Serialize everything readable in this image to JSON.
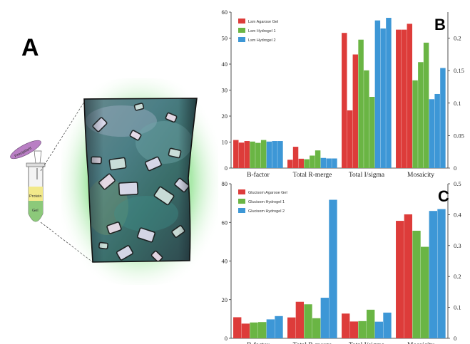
{
  "panel_labels": {
    "a": "A",
    "b": "B",
    "c": "C"
  },
  "illustration": {
    "tube_labels": {
      "precipitant": "Precipitant",
      "protein": "Protein",
      "gel": "Gel"
    },
    "colors": {
      "precipitant": "#b97fc4",
      "protein": "#f2e98a",
      "gel": "#8cc97a",
      "glow": "#9be59b"
    }
  },
  "chart_data": [
    {
      "type": "bar",
      "title": "",
      "xlabel": "",
      "categories": [
        "B-factor",
        "Total R-merge",
        "Total I/sigma",
        "Mosaicity"
      ],
      "ylim": [
        0,
        60
      ],
      "y_ticks": [
        0,
        10,
        20,
        30,
        40,
        50,
        60
      ],
      "y2lim": [
        0,
        0.24
      ],
      "y2_ticks": [
        0,
        0.05,
        0.1,
        0.15,
        0.2
      ],
      "right_axis_categories": [
        "Mosaicity"
      ],
      "legend_position": "top-left",
      "series": [
        {
          "name": "Lsm Agarose Gel",
          "color": "#dd3c3a",
          "values": [
            [
              10.8,
              9.8,
              10.4
            ],
            [
              3.2,
              8.2,
              3.6
            ],
            [
              52.0,
              22.2,
              43.7
            ],
            [
              0.213,
              0.213,
              0.222
            ]
          ]
        },
        {
          "name": "Lsm Hydrogel 1",
          "color": "#6ab544",
          "values": [
            [
              10.2,
              9.7,
              10.8
            ],
            [
              3.4,
              4.8,
              6.8
            ],
            [
              49.4,
              37.6,
              27.4
            ],
            [
              0.135,
              0.163,
              0.193
            ]
          ]
        },
        {
          "name": "Lsm Hydrogel 2",
          "color": "#3d97d6",
          "values": [
            [
              10.2,
              10.4,
              10.4
            ],
            [
              3.9,
              3.7,
              3.7
            ],
            [
              56.8,
              53.7,
              57.8
            ],
            [
              0.106,
              0.114,
              0.154
            ]
          ]
        }
      ]
    },
    {
      "type": "bar",
      "title": "",
      "xlabel": "",
      "categories": [
        "B-factor",
        "Total R-merge",
        "Total I/sigma",
        "Mosaicity"
      ],
      "ylim": [
        0,
        80
      ],
      "y_ticks": [
        0,
        20,
        40,
        60,
        80
      ],
      "y2lim": [
        0,
        0.5
      ],
      "y2_ticks": [
        0,
        0.1,
        0.2,
        0.3,
        0.4,
        0.5
      ],
      "right_axis_categories": [
        "Mosaicity"
      ],
      "legend_position": "top-left",
      "series": [
        {
          "name": "Glucisom Agarose Gel",
          "color": "#dd3c3a",
          "values": [
            [
              10.9,
              7.6
            ],
            [
              10.8,
              18.9
            ],
            [
              12.8,
              8.7
            ],
            [
              0.38,
              0.401
            ]
          ]
        },
        {
          "name": "Glucisom Hydrogel 1",
          "color": "#6ab544",
          "values": [
            [
              8.2,
              8.4
            ],
            [
              17.6,
              10.4
            ],
            [
              8.9,
              14.8
            ],
            [
              0.348,
              0.296
            ]
          ]
        },
        {
          "name": "Glucisom Hydrogel 2",
          "color": "#3d97d6",
          "values": [
            [
              9.8,
              11.5
            ],
            [
              21.0,
              71.7
            ],
            [
              8.6,
              13.3
            ],
            [
              0.412,
              0.418
            ]
          ]
        }
      ]
    }
  ]
}
